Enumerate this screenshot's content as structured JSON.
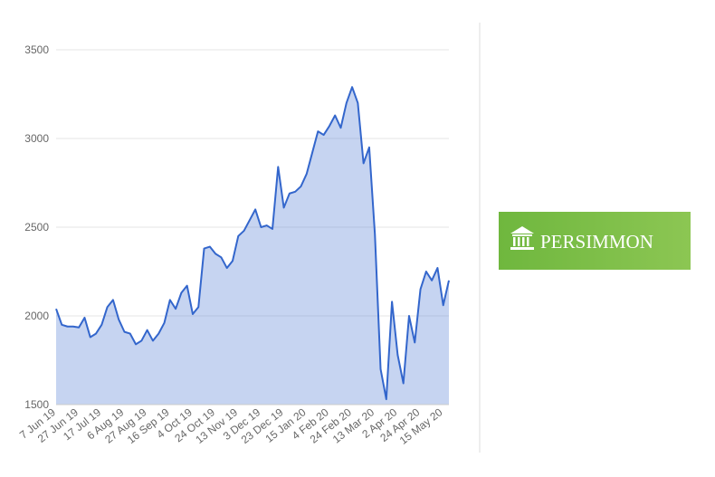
{
  "chart_data": {
    "type": "area",
    "categories": [
      "7 Jun 19",
      null,
      null,
      null,
      "27 Jun 19",
      null,
      null,
      null,
      "17 Jul 19",
      null,
      null,
      null,
      "6 Aug 19",
      null,
      null,
      null,
      "27 Aug 19",
      null,
      null,
      null,
      "16 Sep 19",
      null,
      null,
      null,
      "4 Oct 19",
      null,
      null,
      null,
      "24 Oct 19",
      null,
      null,
      null,
      "13 Nov 19",
      null,
      null,
      null,
      "3 Dec 19",
      null,
      null,
      null,
      "23 Dec 19",
      null,
      null,
      null,
      "15 Jan 20",
      null,
      null,
      null,
      "4 Feb 20",
      null,
      null,
      null,
      "24 Feb 20",
      null,
      null,
      null,
      "13 Mar 20",
      null,
      null,
      null,
      "2 Apr 20",
      null,
      null,
      null,
      "24 Apr 20",
      null,
      null,
      null,
      "15 May 20",
      null
    ],
    "series": [
      {
        "color": "#3366cc",
        "values": [
          2040,
          1950,
          1940,
          1940,
          1935,
          1990,
          1880,
          1900,
          1950,
          2050,
          2090,
          1980,
          1910,
          1900,
          1840,
          1860,
          1920,
          1860,
          1900,
          1960,
          2090,
          2040,
          2130,
          2170,
          2010,
          2050,
          2380,
          2390,
          2350,
          2330,
          2270,
          2310,
          2450,
          2480,
          2540,
          2600,
          2500,
          2510,
          2490,
          2840,
          2610,
          2690,
          2700,
          2730,
          2800,
          2920,
          3040,
          3020,
          3070,
          3130,
          3060,
          3200,
          3290,
          3200,
          2860,
          2950,
          2460,
          1700,
          1530,
          2080,
          1780,
          1620,
          2000,
          1850,
          2150,
          2250,
          2200,
          2270,
          2060,
          2200
        ]
      }
    ],
    "ylim": [
      1500,
      3500
    ],
    "yticks": [
      1500,
      2000,
      2500,
      3000,
      3500
    ],
    "grid": true
  },
  "logo": {
    "text": "PERSIMMON"
  }
}
